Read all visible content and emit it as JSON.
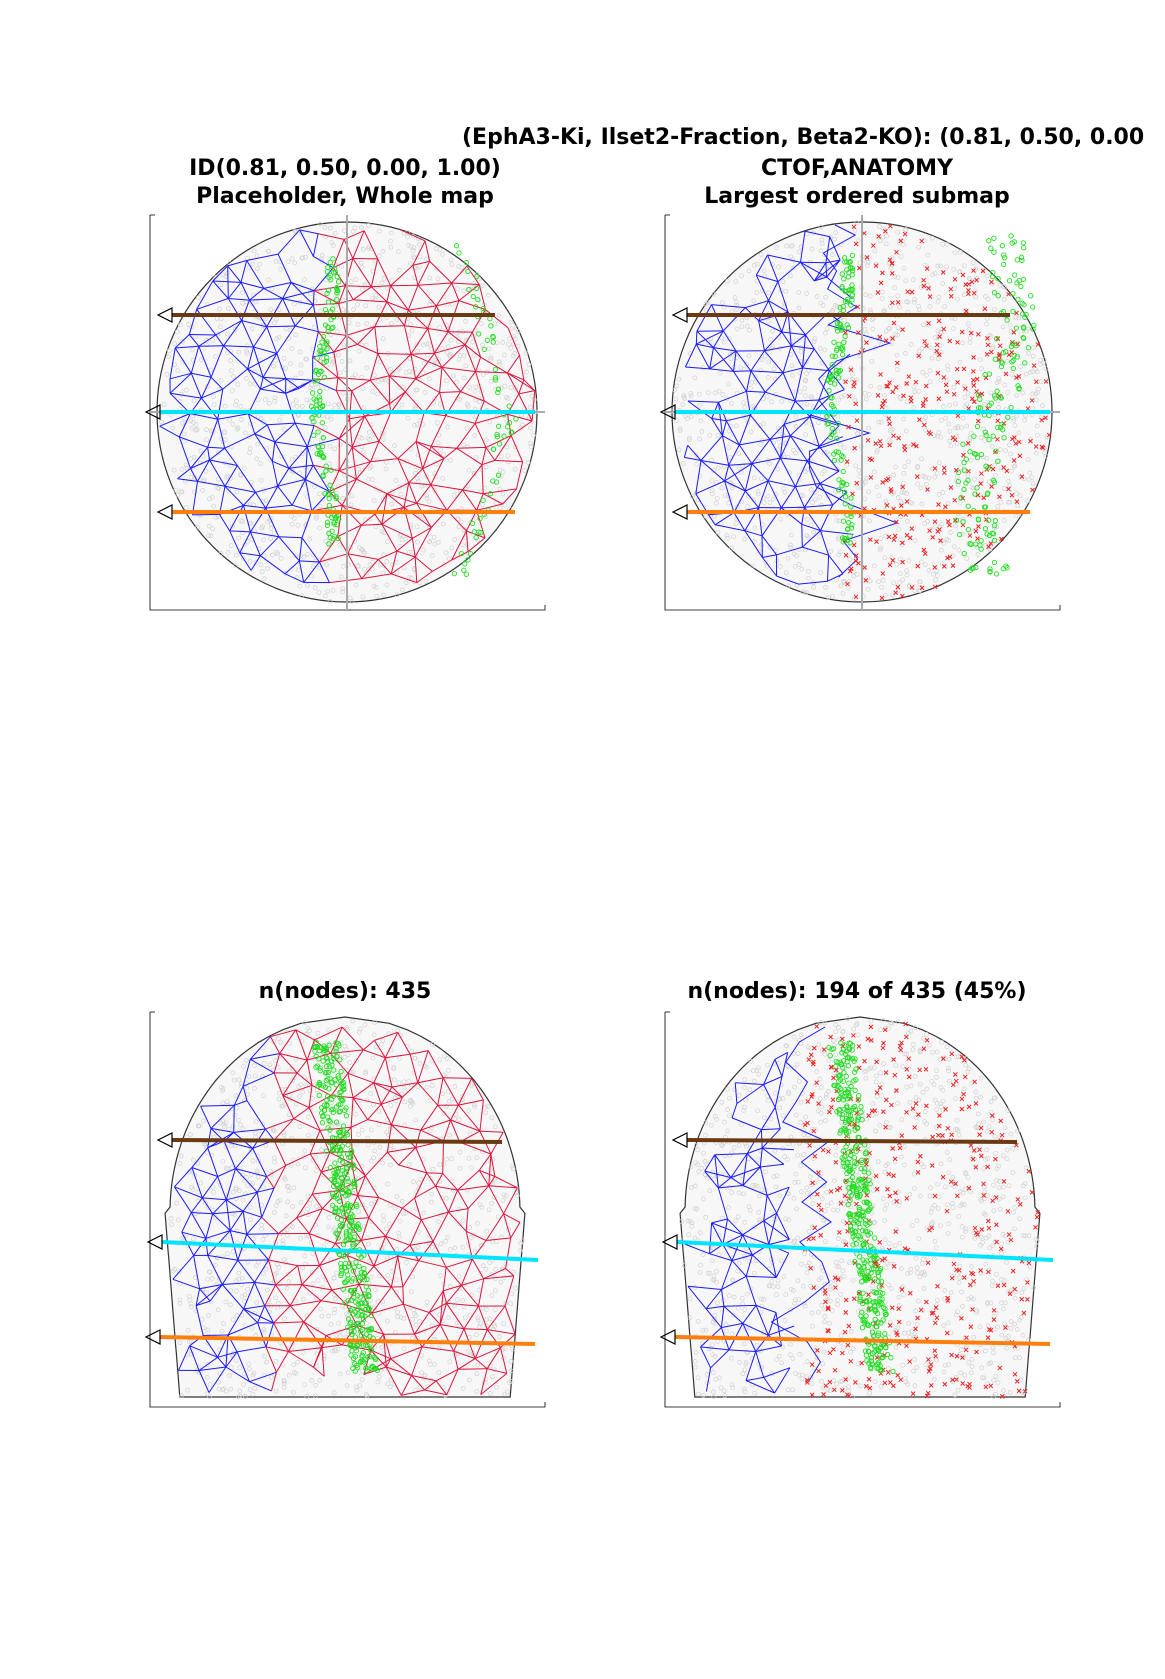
{
  "figure": {
    "main_title": "(EphA3-Ki, Ilset2-Fraction, Beta2-KO): (0.81, 0.50, 0.00",
    "panels": [
      {
        "title_line1": "ID(0.81, 0.50, 0.00, 1.00)",
        "title_line2": "Placeholder, Whole map"
      },
      {
        "title_line1": "CTOF,ANATOMY",
        "title_line2": "Largest ordered submap"
      },
      {
        "title_line1": "n(nodes): 435",
        "title_line2": ""
      },
      {
        "title_line1": "n(nodes): 194 of 435 (45%)",
        "title_line2": ""
      }
    ]
  },
  "colors": {
    "ordered_mesh": "#1a1aff",
    "disordered_mesh": "#dc143c",
    "green_markers": "#22dd22",
    "red_markers": "#ee2222",
    "background_points": "#d0d0d0",
    "line_top": "#6b3a12",
    "line_middle": "#00e5ff",
    "line_bottom": "#ff7f0e",
    "outline": "#333333"
  }
}
